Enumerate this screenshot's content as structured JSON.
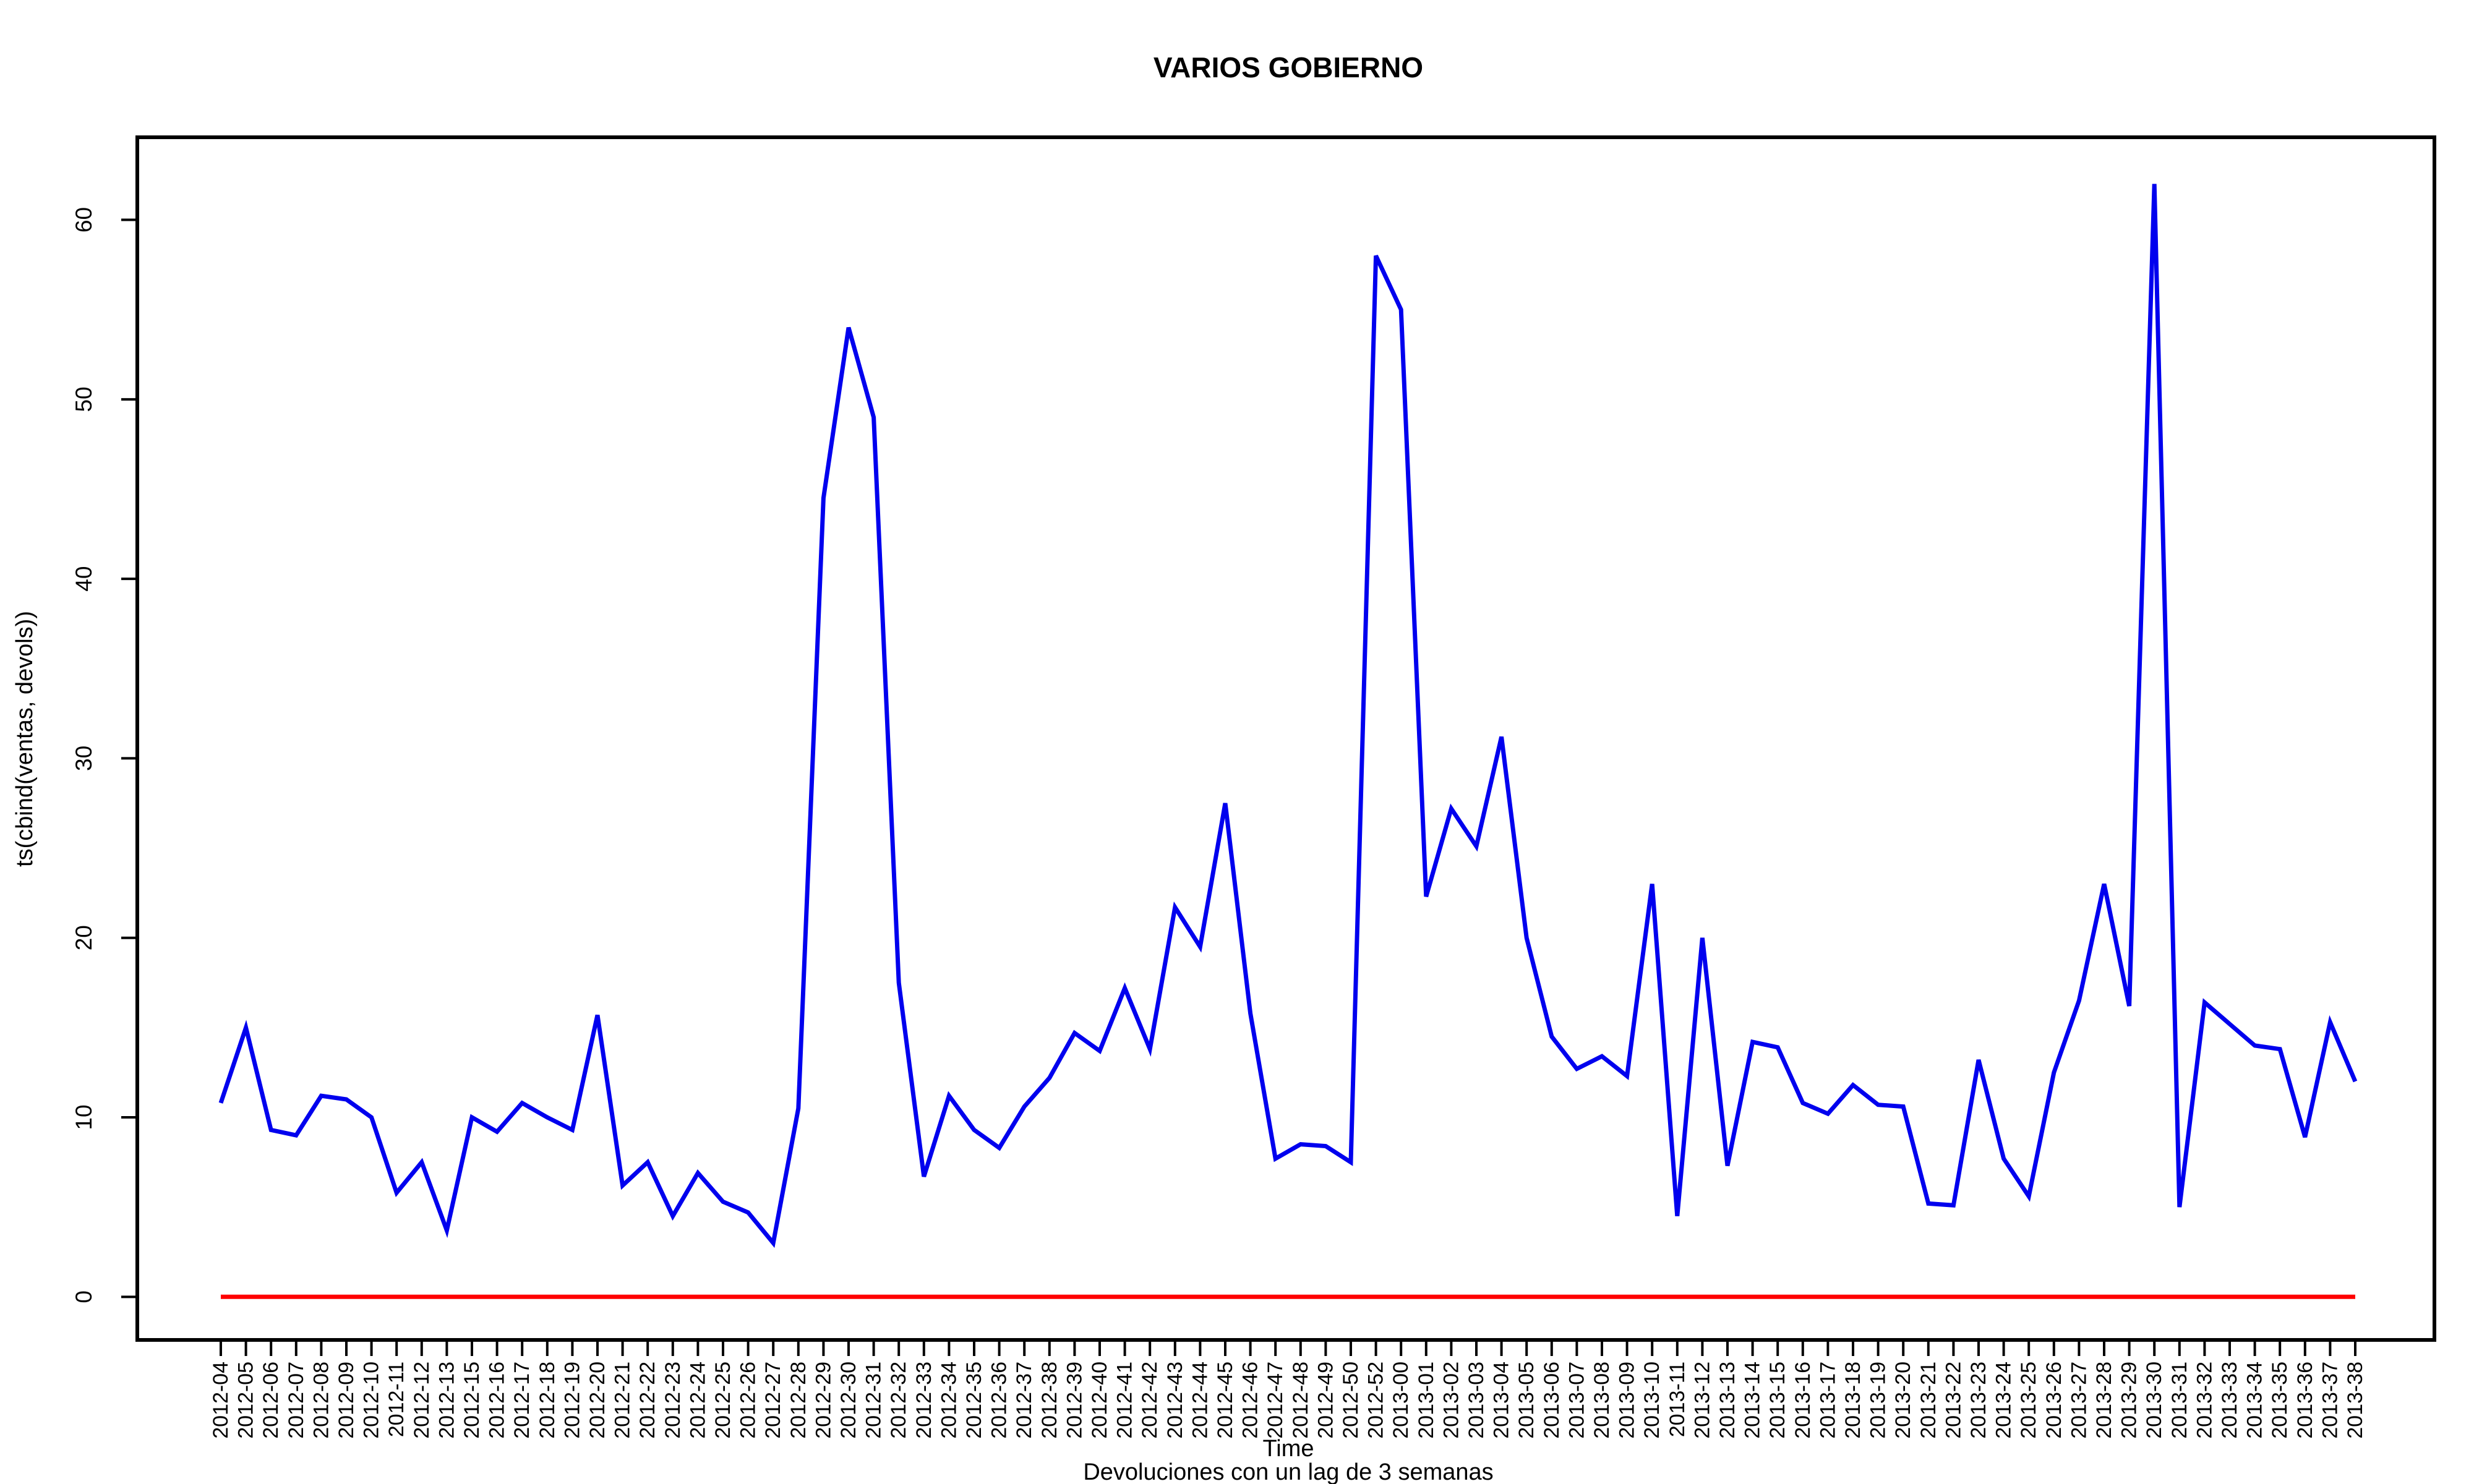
{
  "chart_data": {
    "type": "line",
    "title": "VARIOS GOBIERNO",
    "xlabel": "Time",
    "subtitle": "Devoluciones con un lag de 3 semanas",
    "ylabel": "ts(cbind(ventas, devols))",
    "ylim": [
      -2.4,
      64.6
    ],
    "yticks": [
      0,
      10,
      20,
      30,
      40,
      50,
      60
    ],
    "grid": false,
    "categories": [
      "2012-04",
      "2012-05",
      "2012-06",
      "2012-07",
      "2012-08",
      "2012-09",
      "2012-10",
      "2012-11",
      "2012-12",
      "2012-13",
      "2012-15",
      "2012-16",
      "2012-17",
      "2012-18",
      "2012-19",
      "2012-20",
      "2012-21",
      "2012-22",
      "2012-23",
      "2012-24",
      "2012-25",
      "2012-26",
      "2012-27",
      "2012-28",
      "2012-29",
      "2012-30",
      "2012-31",
      "2012-32",
      "2012-33",
      "2012-34",
      "2012-35",
      "2012-36",
      "2012-37",
      "2012-38",
      "2012-39",
      "2012-40",
      "2012-41",
      "2012-42",
      "2012-43",
      "2012-44",
      "2012-45",
      "2012-46",
      "2012-47",
      "2012-48",
      "2012-49",
      "2012-50",
      "2012-52",
      "2013-00",
      "2013-01",
      "2013-02",
      "2013-03",
      "2013-04",
      "2013-05",
      "2013-06",
      "2013-07",
      "2013-08",
      "2013-09",
      "2013-10",
      "2013-11",
      "2013-12",
      "2013-13",
      "2013-14",
      "2013-15",
      "2013-16",
      "2013-17",
      "2013-18",
      "2013-19",
      "2013-20",
      "2013-21",
      "2013-22",
      "2013-23",
      "2013-24",
      "2013-25",
      "2013-26",
      "2013-27",
      "2013-28",
      "2013-29",
      "2013-30",
      "2013-31",
      "2013-32",
      "2013-33",
      "2013-34",
      "2013-35",
      "2013-36",
      "2013-37",
      "2013-38"
    ],
    "series": [
      {
        "name": "ventas",
        "color": "#0000ee",
        "values": [
          10.8,
          15,
          9.3,
          9,
          11.2,
          11,
          10,
          5.8,
          7.5,
          3.7,
          10,
          9.2,
          10.8,
          10,
          9.3,
          15.7,
          6.2,
          7.5,
          4.5,
          6.9,
          5.3,
          4.7,
          3,
          10.5,
          44.5,
          54,
          49,
          17.5,
          6.7,
          11.2,
          9.3,
          8.3,
          10.6,
          12.2,
          14.7,
          13.7,
          17.2,
          13.8,
          21.7,
          19.5,
          27.5,
          15.8,
          7.7,
          8.5,
          8.4,
          7.5,
          58,
          55,
          22.3,
          27.2,
          25.1,
          31.2,
          20,
          14.5,
          12.7,
          13.4,
          12.3,
          23,
          4.5,
          20,
          7.3,
          14.2,
          13.9,
          10.8,
          10.2,
          11.8,
          10.7,
          10.6,
          5.2,
          5.1,
          13.2,
          7.7,
          5.6,
          12.5,
          16.5,
          23,
          16.2,
          62,
          5,
          16.4,
          15.2,
          14,
          13.8,
          8.9,
          15.3,
          12
        ]
      },
      {
        "name": "devols",
        "color": "#ff0000",
        "values": [
          0,
          0,
          0,
          0,
          0,
          0,
          0,
          0,
          0,
          0,
          0,
          0,
          0,
          0,
          0,
          0,
          0,
          0,
          0,
          0,
          0,
          0,
          0,
          0,
          0,
          0,
          0,
          0,
          0,
          0,
          0,
          0,
          0,
          0,
          0,
          0,
          0,
          0,
          0,
          0,
          0,
          0,
          0,
          0,
          0,
          0,
          0,
          0,
          0,
          0,
          0,
          0,
          0,
          0,
          0,
          0,
          0,
          0,
          0,
          0,
          0,
          0,
          0,
          0,
          0,
          0,
          0,
          0,
          0,
          0,
          0,
          0,
          0,
          0,
          0,
          0,
          0,
          0,
          0,
          0,
          0,
          0,
          0,
          0,
          0,
          0
        ]
      }
    ]
  }
}
